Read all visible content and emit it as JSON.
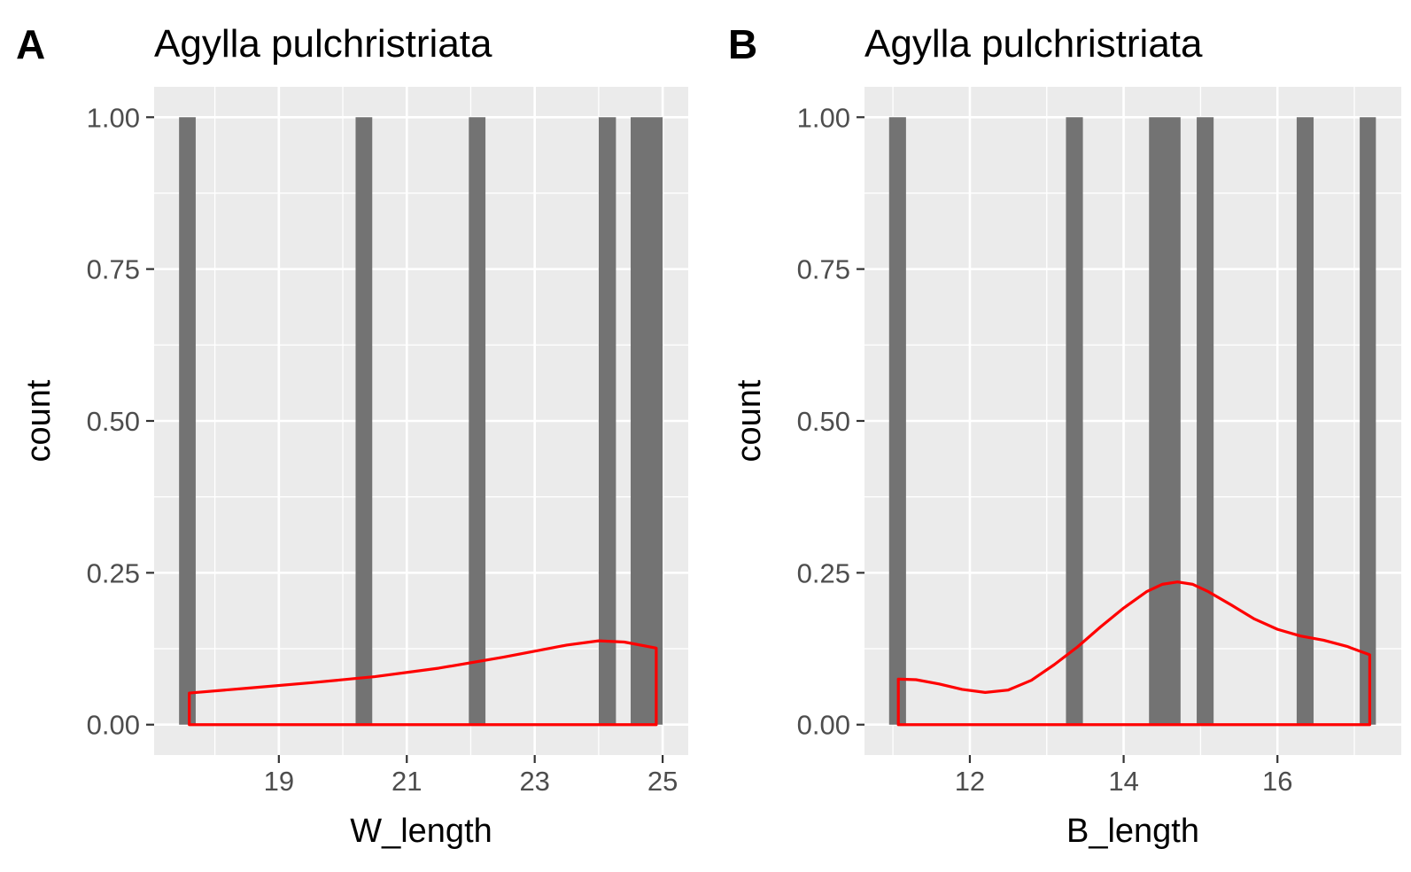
{
  "chart_data": [
    {
      "type": "bar",
      "panel_label": "A",
      "title": "Agylla pulchristriata",
      "xlabel": "W_length",
      "ylabel": "count",
      "x_ticks": [
        19,
        21,
        23,
        25
      ],
      "x_tick_labels": [
        "19",
        "21",
        "23",
        "25"
      ],
      "y_ticks": [
        0,
        0.25,
        0.5,
        0.75,
        1
      ],
      "y_tick_labels": [
        "0.00",
        "0.25",
        "0.50",
        "0.75",
        "1.00"
      ],
      "xlim": [
        17.05,
        25.4
      ],
      "ylim": [
        -0.05,
        1.05
      ],
      "grid": true,
      "histogram_bins": [
        {
          "x0": 17.44,
          "x1": 17.7,
          "count": 1
        },
        {
          "x0": 20.2,
          "x1": 20.46,
          "count": 1
        },
        {
          "x0": 21.97,
          "x1": 22.23,
          "count": 1
        },
        {
          "x0": 24.0,
          "x1": 24.27,
          "count": 1
        },
        {
          "x0": 24.5,
          "x1": 25.0,
          "count": 1
        }
      ],
      "density_curve": {
        "color": "#ff0000",
        "x": [
          17.6,
          18.5,
          19.5,
          20.5,
          21.5,
          22.5,
          23.0,
          23.5,
          24.0,
          24.4,
          24.9
        ],
        "y": [
          0.052,
          0.06,
          0.069,
          0.079,
          0.093,
          0.111,
          0.121,
          0.131,
          0.138,
          0.136,
          0.126
        ]
      }
    },
    {
      "type": "bar",
      "panel_label": "B",
      "title": "Agylla pulchristriata",
      "xlabel": "B_length",
      "ylabel": "count",
      "x_ticks": [
        12,
        14,
        16
      ],
      "x_tick_labels": [
        "12",
        "14",
        "16"
      ],
      "y_ticks": [
        0,
        0.25,
        0.5,
        0.75,
        1
      ],
      "y_tick_labels": [
        "0.00",
        "0.25",
        "0.50",
        "0.75",
        "1.00"
      ],
      "xlim": [
        10.63,
        17.61
      ],
      "ylim": [
        -0.05,
        1.05
      ],
      "grid": true,
      "histogram_bins": [
        {
          "x0": 10.95,
          "x1": 11.17,
          "count": 1
        },
        {
          "x0": 13.25,
          "x1": 13.47,
          "count": 1
        },
        {
          "x0": 14.33,
          "x1": 14.74,
          "count": 1
        },
        {
          "x0": 14.95,
          "x1": 15.17,
          "count": 1
        },
        {
          "x0": 16.25,
          "x1": 16.47,
          "count": 1
        },
        {
          "x0": 17.07,
          "x1": 17.28,
          "count": 1
        }
      ],
      "density_curve": {
        "color": "#ff0000",
        "x": [
          11.07,
          11.3,
          11.6,
          11.9,
          12.2,
          12.5,
          12.8,
          13.1,
          13.4,
          13.7,
          14.0,
          14.3,
          14.5,
          14.7,
          14.9,
          15.1,
          15.4,
          15.7,
          16.0,
          16.3,
          16.6,
          16.9,
          17.2
        ],
        "y": [
          0.075,
          0.074,
          0.067,
          0.058,
          0.053,
          0.057,
          0.073,
          0.099,
          0.128,
          0.161,
          0.192,
          0.219,
          0.231,
          0.235,
          0.231,
          0.219,
          0.197,
          0.174,
          0.157,
          0.146,
          0.139,
          0.129,
          0.115
        ]
      }
    }
  ],
  "colors": {
    "panel_background": "#ebebeb",
    "grid_major": "#ffffff",
    "bar_fill": "#737373",
    "density_line": "#ff0000",
    "tick_text": "#4d4d4d",
    "tick_mark": "#333333"
  }
}
